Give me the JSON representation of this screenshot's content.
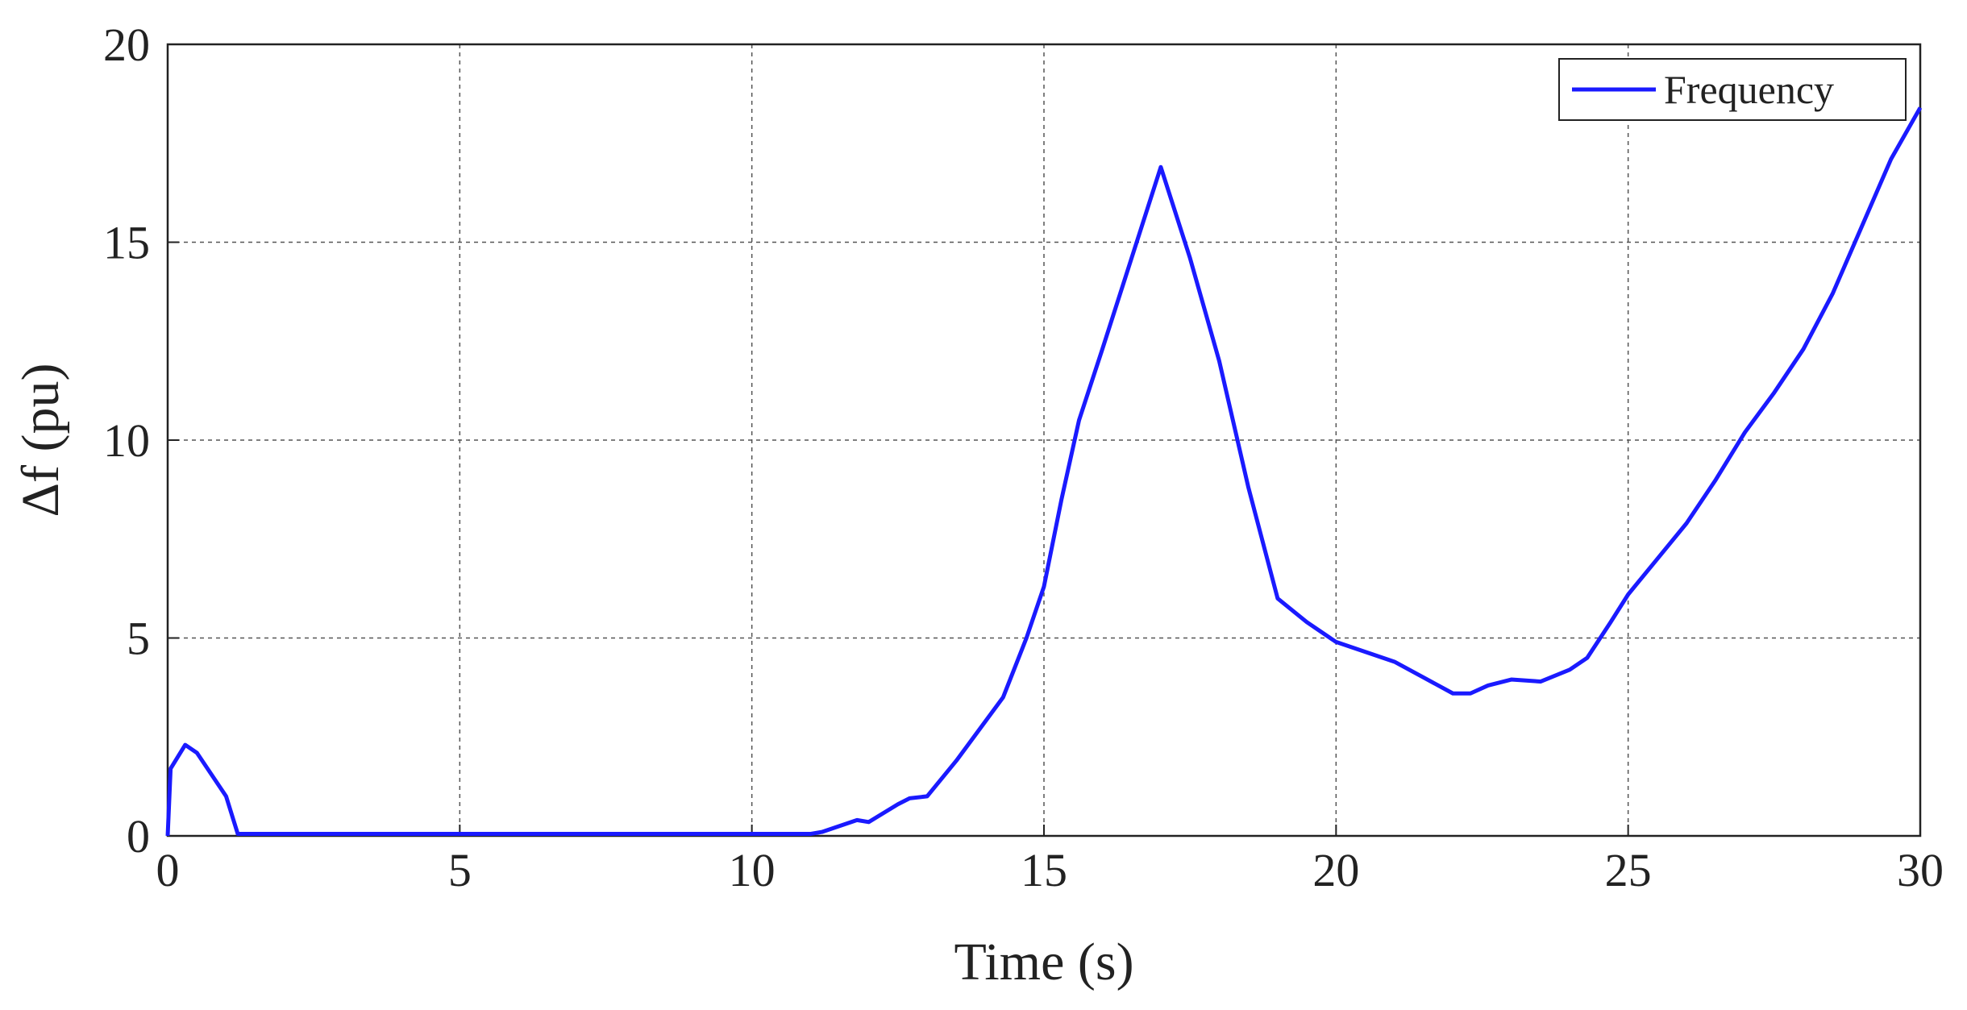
{
  "chart_data": {
    "type": "line",
    "x_label": "Time (s)",
    "y_label": "Δf (pu)",
    "xlim": [
      0,
      30
    ],
    "ylim": [
      0,
      20
    ],
    "xticks": [
      0,
      5,
      10,
      15,
      20,
      25,
      30
    ],
    "yticks": [
      0,
      5,
      10,
      15,
      20
    ],
    "grid": true,
    "legend": "upper right",
    "x": [
      0,
      0.05,
      0.3,
      0.5,
      1.0,
      1.2,
      2,
      5,
      8,
      11,
      11.2,
      11.8,
      12,
      12.5,
      12.7,
      13,
      13.5,
      14,
      14.3,
      14.7,
      15,
      15.3,
      15.6,
      16,
      16.5,
      17,
      17.5,
      18,
      18.5,
      19,
      19.5,
      20,
      21,
      21.5,
      22,
      22.3,
      22.6,
      23,
      23.5,
      24,
      24.3,
      24.7,
      25,
      25.5,
      26,
      26.5,
      27,
      27.5,
      28,
      28.5,
      29,
      29.5,
      30
    ],
    "series": [
      {
        "name": "Frequency",
        "color": "#1a1aff",
        "values": [
          0,
          1.7,
          2.3,
          2.1,
          1.0,
          0.05,
          0.05,
          0.05,
          0.05,
          0.05,
          0.1,
          0.4,
          0.35,
          0.8,
          0.95,
          1.0,
          1.9,
          2.9,
          3.5,
          5.0,
          6.3,
          8.5,
          10.5,
          12.3,
          14.6,
          16.9,
          14.6,
          12.0,
          8.8,
          6.0,
          5.4,
          4.9,
          4.4,
          4.0,
          3.6,
          3.6,
          3.8,
          3.95,
          3.9,
          4.2,
          4.5,
          5.4,
          6.1,
          7.0,
          7.9,
          9.0,
          10.2,
          11.2,
          12.3,
          13.7,
          15.4,
          17.1,
          18.4
        ]
      }
    ]
  }
}
